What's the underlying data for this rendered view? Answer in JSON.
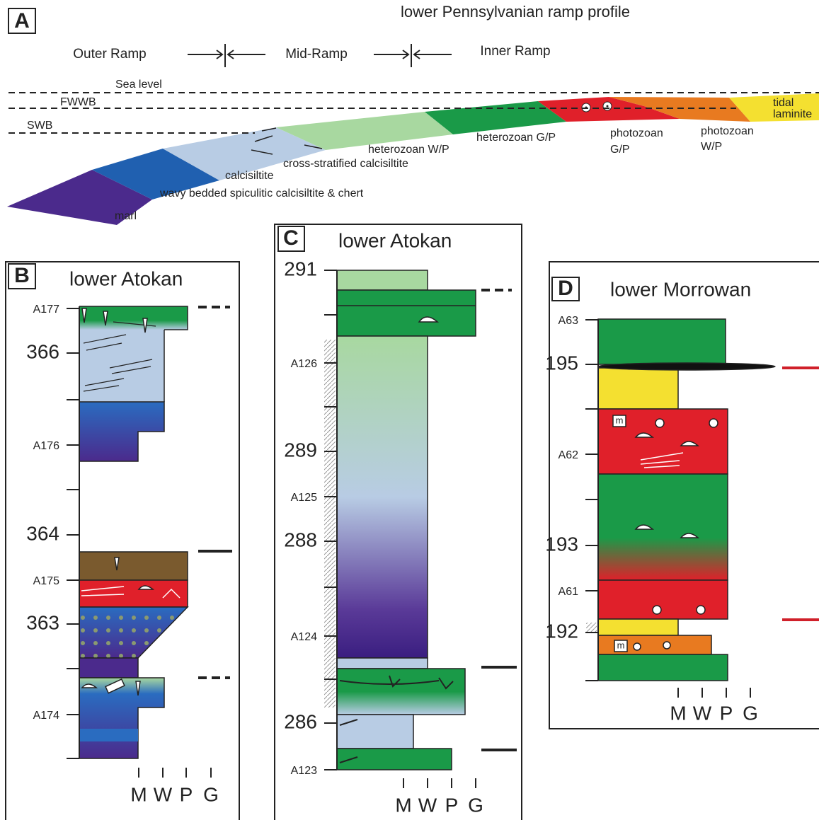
{
  "panel_a": {
    "label": "A",
    "title": "lower Pennsylvanian ramp profile",
    "zones": [
      "Outer Ramp",
      "Mid-Ramp",
      "Inner Ramp"
    ],
    "levels": [
      "Sea level",
      "FWWB",
      "SWB"
    ],
    "facies": [
      "tidal",
      "laminite",
      "photozoan",
      "G/P",
      "photozoan",
      "W/P",
      "heterozoan G/P",
      "heterozoan W/P",
      "cross-stratified calcisiltite",
      "calcisiltite",
      "wavy bedded spiculitic calcisiltite & chert",
      "marl"
    ]
  },
  "panel_b": {
    "label": "B",
    "title": "lower Atokan",
    "depth_labels": [
      "A177",
      "366",
      "A176",
      "364",
      "A175",
      "363",
      "A174"
    ],
    "texture_labels": [
      "M",
      "W",
      "P",
      "G"
    ]
  },
  "panel_c": {
    "label": "C",
    "title": "lower Atokan",
    "depth_labels": [
      "291",
      "A126",
      "289",
      "A125",
      "288",
      "A124",
      "286",
      "A123"
    ],
    "texture_labels": [
      "M",
      "W",
      "P",
      "G"
    ]
  },
  "panel_d": {
    "label": "D",
    "title": "lower Morrowan",
    "depth_labels": [
      "A63",
      "195",
      "A62",
      "193",
      "A61",
      "192"
    ],
    "symbols": [
      "m",
      "m"
    ],
    "texture_labels": [
      "M",
      "W",
      "P",
      "G"
    ]
  }
}
